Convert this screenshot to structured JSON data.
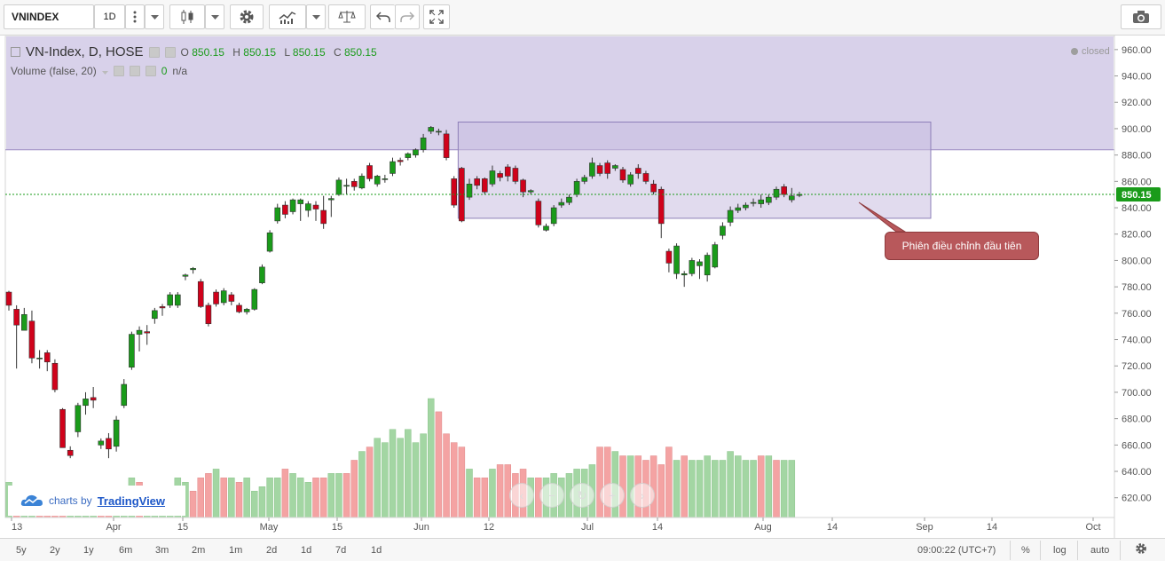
{
  "toolbar": {
    "symbol": "VNINDEX",
    "interval": "1D",
    "icons": {
      "interval_menu": "vertical-dots-icon",
      "caret": "chevron-down-icon",
      "style": "candlestick-icon",
      "settings": "gear-icon",
      "indicators": "indicators-icon",
      "compare": "scales-icon",
      "undo": "undo-icon",
      "redo": "redo-icon",
      "fullscreen": "fullscreen-icon",
      "screenshot": "camera-icon"
    }
  },
  "legend": {
    "title": "VN-Index, D, HOSE",
    "o_label": "O",
    "o_value": "850.15",
    "h_label": "H",
    "h_value": "850.15",
    "l_label": "L",
    "l_value": "850.15",
    "c_label": "C",
    "c_value": "850.15",
    "volume_title": "Volume (false, 20)",
    "volume_value": "0",
    "volume_na": "n/a"
  },
  "status": {
    "closed": "closed"
  },
  "price_label": "850.15",
  "callout": "Phiên điều chỉnh đầu tiên",
  "watermark": {
    "by": "charts by",
    "brand": "TradingView"
  },
  "bottom": {
    "ranges": [
      "5y",
      "2y",
      "1y",
      "6m",
      "3m",
      "2m",
      "1m",
      "2d",
      "1d",
      "7d",
      "1d"
    ],
    "time": "09:00:22 (UTC+7)",
    "percent": "%",
    "log": "log",
    "auto": "auto"
  },
  "colors": {
    "up": "#1a9b1a",
    "down": "#d0021b",
    "up_volume": "#a3d6a3",
    "down_volume": "#f4a3a3",
    "band": "#d8d1ea",
    "box": "#c9bee0",
    "price_line": "#1a9b1a"
  },
  "chart_data": {
    "type": "candlestick",
    "y_axis": {
      "range": [
        605,
        970
      ],
      "ticks": [
        620,
        640,
        660,
        680,
        700,
        720,
        740,
        760,
        780,
        800,
        820,
        840,
        860,
        880,
        900,
        920,
        940,
        960
      ],
      "tick_labels": [
        "620.00",
        "640.00",
        "660.00",
        "680.00",
        "700.00",
        "720.00",
        "740.00",
        "760.00",
        "780.00",
        "800.00",
        "820.00",
        "840.00",
        "860.00",
        "880.00",
        "900.00",
        "920.00",
        "940.00",
        "960.00"
      ]
    },
    "x_axis": {
      "tick_labels": [
        "13",
        "Apr",
        "15",
        "May",
        "15",
        "Jun",
        "12",
        "Jul",
        "14",
        "Aug",
        "14",
        "Sep",
        "14",
        "Oct"
      ]
    },
    "last_price": 850.15,
    "shaded_band": {
      "from": 884,
      "to": 970
    },
    "box": {
      "top": 905,
      "bottom": 832
    },
    "candles": [
      [
        776,
        766,
        777,
        762
      ],
      [
        763,
        751,
        766,
        718
      ],
      [
        747,
        759,
        764,
        749
      ],
      [
        754,
        726,
        762,
        722
      ],
      [
        726,
        726,
        732,
        718
      ],
      [
        730,
        723,
        732,
        716
      ],
      [
        722,
        702,
        725,
        700
      ],
      [
        687,
        658,
        688,
        658
      ],
      [
        656,
        652,
        659,
        650
      ],
      [
        670,
        690,
        692,
        666
      ],
      [
        690,
        695,
        700,
        683
      ],
      [
        696,
        694,
        704,
        688
      ],
      [
        660,
        663,
        665,
        657
      ],
      [
        665,
        657,
        669,
        650
      ],
      [
        659,
        679,
        682,
        655
      ],
      [
        690,
        706,
        710,
        688
      ],
      [
        719,
        744,
        746,
        717
      ],
      [
        744,
        747,
        750,
        731
      ],
      [
        746,
        745,
        751,
        736
      ],
      [
        756,
        762,
        764,
        752
      ],
      [
        765,
        764,
        767,
        758
      ],
      [
        766,
        774,
        776,
        764
      ],
      [
        766,
        774,
        776,
        764
      ],
      [
        788,
        789,
        790,
        785
      ],
      [
        793,
        794,
        795,
        790
      ],
      [
        784,
        765,
        786,
        764
      ],
      [
        766,
        752,
        768,
        750
      ],
      [
        776,
        767,
        778,
        765
      ],
      [
        768,
        777,
        779,
        766
      ],
      [
        774,
        769,
        776,
        766
      ],
      [
        766,
        761,
        768,
        760
      ],
      [
        761,
        763,
        764,
        759
      ],
      [
        763,
        778,
        779,
        762
      ],
      [
        783,
        795,
        797,
        782
      ],
      [
        807,
        821,
        823,
        806
      ],
      [
        830,
        840,
        843,
        828
      ],
      [
        842,
        835,
        845,
        832
      ],
      [
        837,
        846,
        847,
        835
      ],
      [
        843,
        846,
        847,
        830
      ],
      [
        838,
        843,
        845,
        833
      ],
      [
        842,
        839,
        845,
        830
      ],
      [
        838,
        828,
        849,
        824
      ],
      [
        846,
        847,
        849,
        833
      ],
      [
        850,
        861,
        863,
        849
      ],
      [
        857,
        857,
        862,
        850
      ],
      [
        860,
        856,
        862,
        853
      ],
      [
        855,
        864,
        866,
        854
      ],
      [
        872,
        862,
        874,
        860
      ],
      [
        858,
        864,
        865,
        856
      ],
      [
        862,
        862,
        865,
        859
      ],
      [
        866,
        875,
        878,
        864
      ],
      [
        876,
        875,
        878,
        872
      ],
      [
        878,
        881,
        882,
        876
      ],
      [
        880,
        884,
        885,
        878
      ],
      [
        884,
        893,
        896,
        882
      ],
      [
        898,
        901,
        902,
        896
      ],
      [
        898,
        898,
        900,
        895
      ],
      [
        896,
        878,
        899,
        876
      ],
      [
        862,
        842,
        864,
        840
      ],
      [
        870,
        830,
        871,
        829
      ],
      [
        848,
        858,
        862,
        846
      ],
      [
        862,
        857,
        864,
        854
      ],
      [
        862,
        852,
        863,
        850
      ],
      [
        858,
        868,
        872,
        856
      ],
      [
        866,
        863,
        868,
        860
      ],
      [
        871,
        864,
        873,
        860
      ],
      [
        870,
        860,
        872,
        858
      ],
      [
        861,
        852,
        862,
        848
      ],
      [
        852,
        853,
        854,
        850
      ],
      [
        845,
        827,
        847,
        825
      ],
      [
        823,
        826,
        828,
        822
      ],
      [
        828,
        840,
        842,
        826
      ],
      [
        842,
        844,
        847,
        840
      ],
      [
        844,
        848,
        850,
        842
      ],
      [
        850,
        860,
        862,
        848
      ],
      [
        860,
        863,
        865,
        858
      ],
      [
        864,
        874,
        878,
        862
      ],
      [
        872,
        866,
        874,
        864
      ],
      [
        874,
        866,
        876,
        862
      ],
      [
        870,
        872,
        873,
        868
      ],
      [
        869,
        861,
        871,
        859
      ],
      [
        858,
        865,
        867,
        856
      ],
      [
        870,
        866,
        873,
        862
      ],
      [
        866,
        860,
        868,
        858
      ],
      [
        858,
        852,
        861,
        850
      ],
      [
        854,
        828,
        856,
        817
      ],
      [
        807,
        798,
        809,
        791
      ],
      [
        790,
        811,
        813,
        786
      ],
      [
        789,
        790,
        792,
        780
      ],
      [
        790,
        800,
        802,
        788
      ],
      [
        796,
        799,
        801,
        786
      ],
      [
        789,
        804,
        806,
        784
      ],
      [
        795,
        812,
        814,
        794
      ],
      [
        819,
        826,
        829,
        816
      ],
      [
        829,
        838,
        841,
        826
      ],
      [
        838,
        840,
        843,
        836
      ],
      [
        840,
        842,
        844,
        838
      ],
      [
        844,
        844,
        847,
        841
      ],
      [
        843,
        846,
        850,
        840
      ],
      [
        844,
        848,
        850,
        842
      ],
      [
        848,
        854,
        856,
        846
      ],
      [
        856,
        850,
        858,
        848
      ],
      [
        846,
        849,
        855,
        844
      ],
      [
        850,
        850,
        852,
        848
      ]
    ],
    "volume": [
      8,
      4,
      3,
      3,
      3,
      3,
      3,
      3,
      3,
      3,
      3,
      3,
      2,
      3,
      4,
      3,
      9,
      8,
      7,
      7,
      7,
      7,
      9,
      8,
      6,
      9,
      10,
      11,
      9,
      9,
      8,
      9,
      6,
      7,
      9,
      9,
      11,
      10,
      9,
      8,
      9,
      9,
      10,
      10,
      10,
      13,
      15,
      16,
      18,
      17,
      20,
      18,
      20,
      17,
      19,
      27,
      24,
      19,
      17,
      16,
      11,
      9,
      9,
      11,
      12,
      12,
      10,
      11,
      9,
      9,
      9,
      10,
      9,
      10,
      11,
      11,
      12,
      16,
      16,
      15,
      14,
      14,
      14,
      13,
      14,
      12,
      16,
      13,
      14,
      13,
      13,
      14,
      13,
      13,
      15,
      14,
      13,
      13,
      14,
      14,
      13,
      13,
      13
    ],
    "volume_up": [
      true,
      false,
      true,
      true,
      false,
      false,
      false,
      false,
      true,
      true,
      true,
      true,
      false,
      false,
      true,
      true,
      true,
      false,
      true,
      true,
      true,
      true,
      true,
      true,
      false,
      false,
      false,
      true,
      false,
      true,
      false,
      true,
      true,
      true,
      true,
      true,
      false,
      true,
      true,
      true,
      false,
      false,
      true,
      true,
      false,
      false,
      true,
      false,
      true,
      true,
      true,
      true,
      true,
      true,
      true,
      true,
      false,
      false,
      false,
      false,
      true,
      false,
      false,
      true,
      false,
      false,
      false,
      false,
      true,
      false,
      true,
      true,
      true,
      true,
      true,
      true,
      true,
      false,
      false,
      true,
      false,
      true,
      false,
      false,
      false,
      false,
      false,
      true,
      false,
      true,
      true,
      true,
      true,
      true,
      true,
      true,
      true,
      true,
      false,
      true,
      false,
      true,
      true
    ]
  }
}
